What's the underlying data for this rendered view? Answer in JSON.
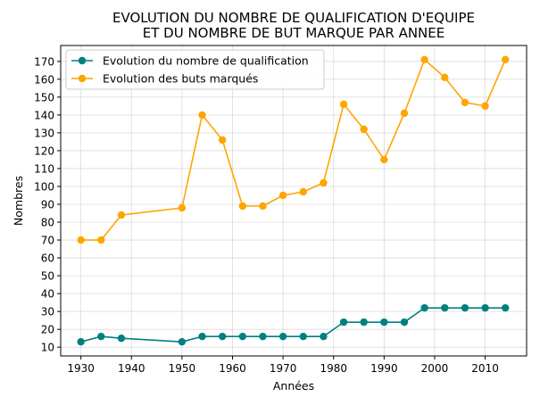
{
  "chart_data": {
    "type": "line",
    "title_lines": [
      "EVOLUTION DU NOMBRE DE QUALIFICATION D'EQUIPE",
      "ET DU NOMBRE DE BUT MARQUE PAR ANNEE"
    ],
    "xlabel": "Années",
    "ylabel": "Nombres",
    "xlim": [
      1926,
      2018.2
    ],
    "ylim": [
      5.1,
      178.9
    ],
    "xticks": [
      1930,
      1940,
      1950,
      1960,
      1970,
      1980,
      1990,
      2000,
      2010
    ],
    "yticks": [
      10,
      20,
      30,
      40,
      50,
      60,
      70,
      80,
      90,
      100,
      110,
      120,
      130,
      140,
      150,
      160,
      170
    ],
    "grid": true,
    "legend_position": "top-left",
    "x": [
      1930,
      1934,
      1938,
      1950,
      1954,
      1958,
      1962,
      1966,
      1970,
      1974,
      1978,
      1982,
      1986,
      1990,
      1994,
      1998,
      2002,
      2006,
      2010,
      2014
    ],
    "series": [
      {
        "name": "Evolution du nombre de qualification",
        "color": "#008080",
        "values": [
          13,
          16,
          15,
          13,
          16,
          16,
          16,
          16,
          16,
          16,
          16,
          24,
          24,
          24,
          24,
          32,
          32,
          32,
          32,
          32
        ]
      },
      {
        "name": "Evolution des buts marqués",
        "color": "#ffa500",
        "values": [
          70,
          70,
          84,
          88,
          140,
          126,
          89,
          89,
          95,
          97,
          102,
          146,
          132,
          115,
          141,
          171,
          161,
          147,
          145,
          171
        ]
      }
    ]
  }
}
